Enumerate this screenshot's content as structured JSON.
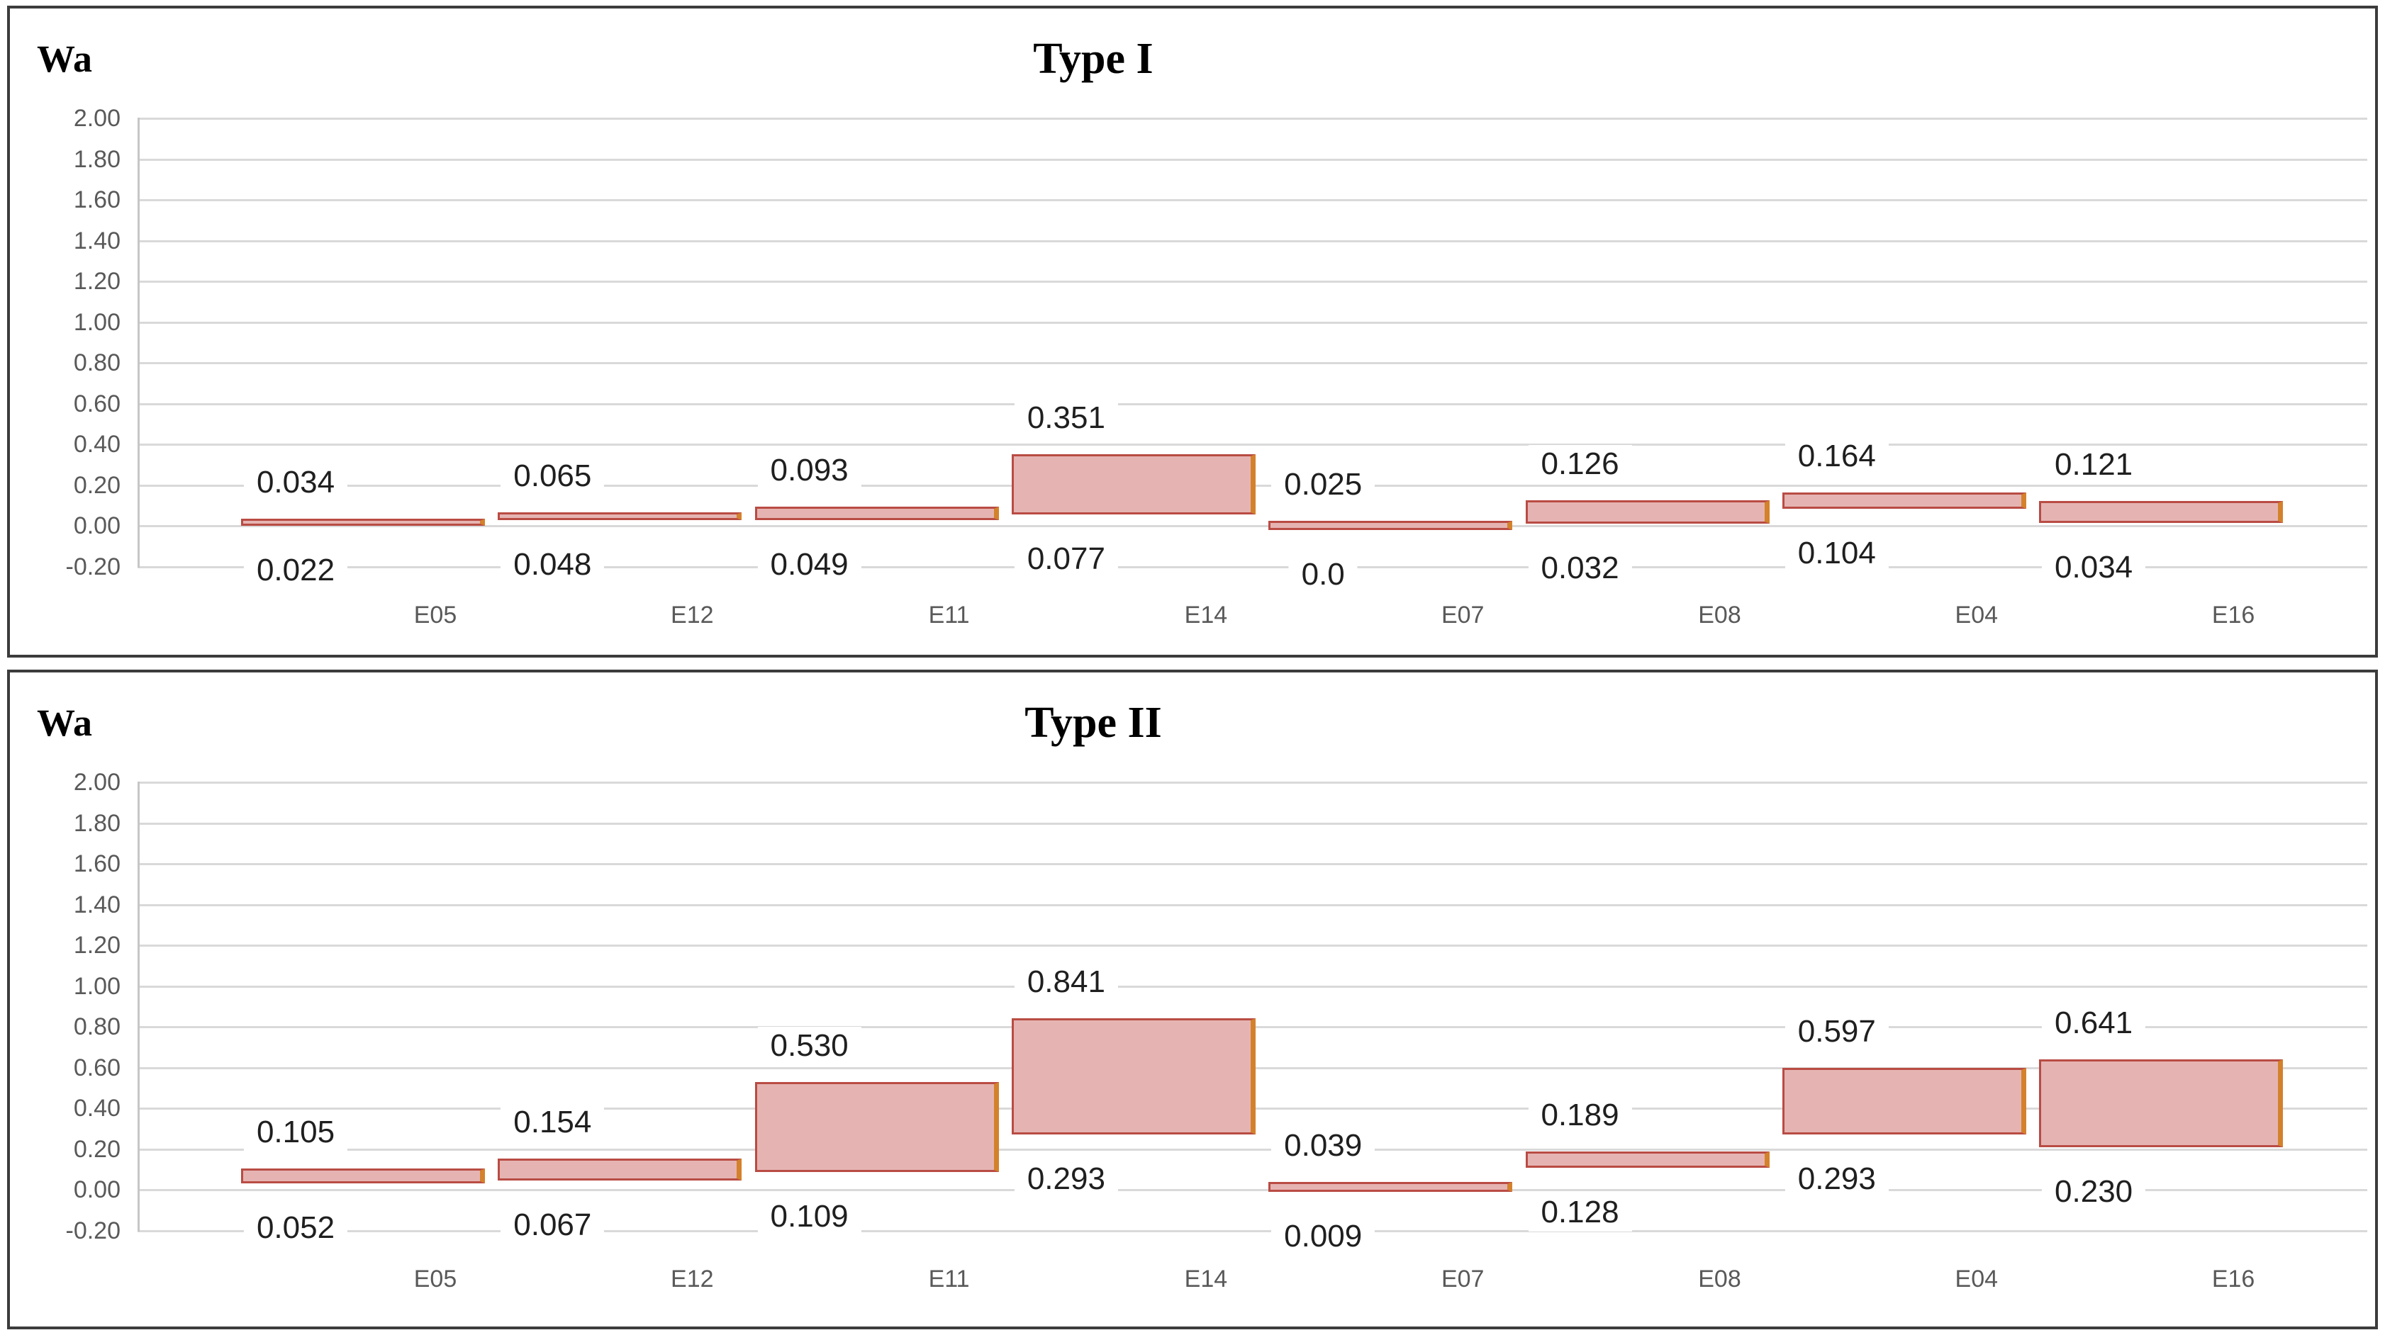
{
  "y_axis": {
    "label": "Wa",
    "max": 2.0,
    "min": -0.2,
    "step": 0.2,
    "ticks": [
      "2.00",
      "1.80",
      "1.60",
      "1.40",
      "1.20",
      "1.00",
      "0.80",
      "0.60",
      "0.40",
      "0.20",
      "0.00",
      "-0.20"
    ]
  },
  "colors": {
    "bar_fill": "#e5b4b2",
    "bar_border": "#b94c44",
    "bar_right_accent": "#d4812c",
    "gridline": "#d9d9d9",
    "axis_line": "#c6c6c6",
    "tick_text": "#595959",
    "category_text": "#595959",
    "data_label_text": "#1f1f1f",
    "title_text": "#000000",
    "panel_border": "#3c3c3c",
    "background": "#ffffff"
  },
  "chart_data": [
    {
      "type": "bar",
      "subtype": "floating-range-bar",
      "title": "Type I",
      "ylabel": "Wa",
      "xlabel": "",
      "ylim": [
        -0.2,
        2.0
      ],
      "grid": true,
      "legend": "none",
      "categories": [
        "E05",
        "E12",
        "E11",
        "E14",
        "E07",
        "E08",
        "E04",
        "E16"
      ],
      "series": [
        {
          "name": "high",
          "values": [
            0.034,
            0.065,
            0.093,
            0.351,
            0.025,
            0.126,
            0.164,
            0.121
          ]
        },
        {
          "name": "low",
          "values": [
            0.022,
            0.048,
            0.049,
            0.077,
            0.0,
            0.032,
            0.104,
            0.034
          ]
        }
      ],
      "bars": [
        {
          "category": "E05",
          "high": 0.034,
          "low": 0.022,
          "high_label": "0.034",
          "low_label": "0.022"
        },
        {
          "category": "E12",
          "high": 0.065,
          "low": 0.048,
          "high_label": "0.065",
          "low_label": "0.048"
        },
        {
          "category": "E11",
          "high": 0.093,
          "low": 0.049,
          "high_label": "0.093",
          "low_label": "0.049"
        },
        {
          "category": "E14",
          "high": 0.351,
          "low": 0.077,
          "high_label": "0.351",
          "low_label": "0.077"
        },
        {
          "category": "E07",
          "high": 0.025,
          "low": 0.0,
          "high_label": "0.025",
          "low_label": "0.0"
        },
        {
          "category": "E08",
          "high": 0.126,
          "low": 0.032,
          "high_label": "0.126",
          "low_label": "0.032"
        },
        {
          "category": "E04",
          "high": 0.164,
          "low": 0.104,
          "high_label": "0.164",
          "low_label": "0.104"
        },
        {
          "category": "E16",
          "high": 0.121,
          "low": 0.034,
          "high_label": "0.121",
          "low_label": "0.034"
        }
      ]
    },
    {
      "type": "bar",
      "subtype": "floating-range-bar",
      "title": "Type II",
      "ylabel": "Wa",
      "xlabel": "",
      "ylim": [
        -0.2,
        2.0
      ],
      "grid": true,
      "legend": "none",
      "categories": [
        "E05",
        "E12",
        "E11",
        "E14",
        "E07",
        "E08",
        "E04",
        "E16"
      ],
      "series": [
        {
          "name": "high",
          "values": [
            0.105,
            0.154,
            0.53,
            0.841,
            0.039,
            0.189,
            0.597,
            0.641
          ]
        },
        {
          "name": "low",
          "values": [
            0.052,
            0.067,
            0.109,
            0.293,
            0.009,
            0.128,
            0.293,
            0.23
          ]
        }
      ],
      "bars": [
        {
          "category": "E05",
          "high": 0.105,
          "low": 0.052,
          "high_label": "0.105",
          "low_label": "0.052"
        },
        {
          "category": "E12",
          "high": 0.154,
          "low": 0.067,
          "high_label": "0.154",
          "low_label": "0.067"
        },
        {
          "category": "E11",
          "high": 0.53,
          "low": 0.109,
          "high_label": "0.530",
          "low_label": "0.109"
        },
        {
          "category": "E14",
          "high": 0.841,
          "low": 0.293,
          "high_label": "0.841",
          "low_label": "0.293"
        },
        {
          "category": "E07",
          "high": 0.039,
          "low": 0.009,
          "high_label": "0.039",
          "low_label": "0.009"
        },
        {
          "category": "E08",
          "high": 0.189,
          "low": 0.128,
          "high_label": "0.189",
          "low_label": "0.128"
        },
        {
          "category": "E04",
          "high": 0.597,
          "low": 0.293,
          "high_label": "0.597",
          "low_label": "0.293"
        },
        {
          "category": "E16",
          "high": 0.641,
          "low": 0.23,
          "high_label": "0.641",
          "low_label": "0.230"
        }
      ]
    }
  ]
}
